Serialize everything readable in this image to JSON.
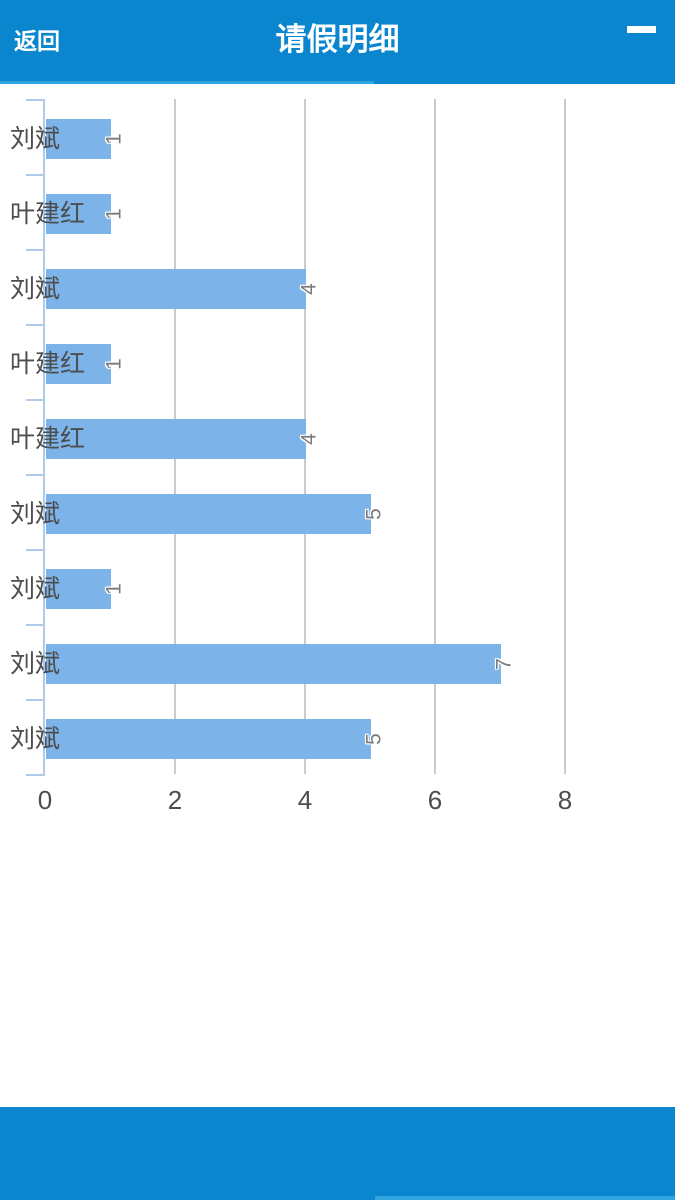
{
  "header": {
    "back_label": "返回",
    "title": "请假明细",
    "menu_icon": "hamburger-menu-icon"
  },
  "colors": {
    "header_bg": "#0A86CE",
    "header_progress": "#31A5E0",
    "bar_fill": "#7CB3E9",
    "axis": "#AFCBE9",
    "gridline": "#CBCBCB",
    "cat_label": "#4D4D4D",
    "tick_label": "#4D4D4D",
    "data_label": "#7A7A7A"
  },
  "chart_data": {
    "type": "bar",
    "orientation": "horizontal",
    "title": "",
    "xlabel": "",
    "ylabel": "",
    "categories": [
      "刘斌",
      "叶建红",
      "刘斌",
      "叶建红",
      "叶建红",
      "刘斌",
      "刘斌",
      "刘斌",
      "刘斌"
    ],
    "values": [
      1,
      1,
      4,
      1,
      4,
      5,
      1,
      7,
      5
    ],
    "data_labels": [
      "1",
      "1",
      "4",
      "1",
      "4",
      "5",
      "1",
      "7",
      "5"
    ],
    "data_label_rotation": -90,
    "x_ticks": [
      "0",
      "2",
      "4",
      "6",
      "8"
    ],
    "xlim": [
      0,
      9.5
    ],
    "grid": true,
    "legend_position": "none"
  },
  "footer": {}
}
